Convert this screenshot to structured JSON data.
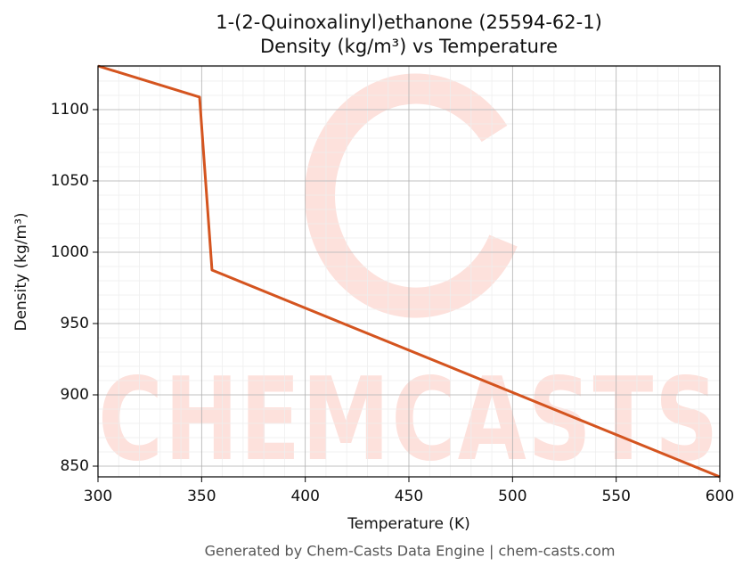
{
  "chart_data": {
    "type": "line",
    "title": "1-(2-Quinoxalinyl)ethanone (25594-62-1)",
    "subtitle": "Density (kg/m³) vs Temperature",
    "x_label": "Temperature (K)",
    "y_label": "Density (kg/m³)",
    "footer": "Generated by Chem-Casts Data Engine | chem-casts.com",
    "watermark": "CHEMCASTS",
    "x": [
      300,
      349,
      355,
      600
    ],
    "values": [
      1130.6,
      1108.8,
      987.5,
      842.5
    ],
    "color": "#d4541f",
    "xlim": [
      300,
      600
    ],
    "xticks": [
      300,
      350,
      400,
      450,
      500,
      550,
      600
    ],
    "ylim": [
      842.5,
      1130.6
    ],
    "yticks": [
      850,
      900,
      950,
      1000,
      1050,
      1100
    ],
    "grid": true
  }
}
